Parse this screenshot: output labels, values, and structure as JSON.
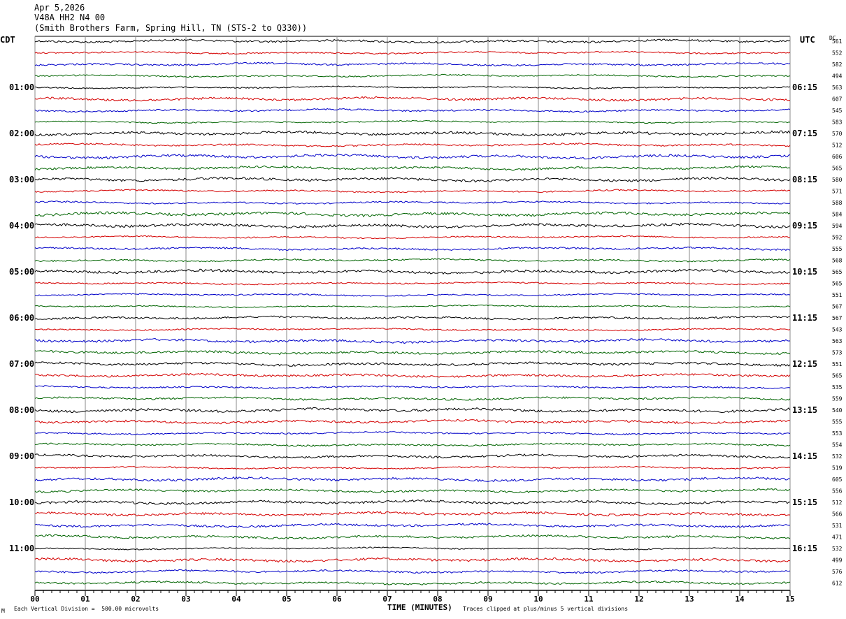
{
  "header": {
    "date": "Apr 5,2026",
    "station": "V48A HH2 N4 00",
    "location": "(Smith Brothers Farm, Spring Hill, TN (STS-2 to Q330))"
  },
  "left_zone": "CDT",
  "right_zone": "UTC",
  "dc_label": "DC",
  "footer": {
    "scale": "Each Vertical Division =  500.00 microvolts",
    "clip": "Traces clipped at plus/minus 5 vertical divisions",
    "logo": "M"
  },
  "chart_data": {
    "type": "line",
    "xlabel": "TIME (MINUTES)",
    "xlim": [
      0,
      15
    ],
    "x_ticks": [
      "00",
      "01",
      "02",
      "03",
      "04",
      "05",
      "06",
      "07",
      "08",
      "09",
      "10",
      "11",
      "12",
      "13",
      "14",
      "15"
    ],
    "colors": [
      "#000000",
      "#d40000",
      "#0000c8",
      "#006400"
    ],
    "left_hour_labels": [
      "01:00",
      "02:00",
      "03:00",
      "04:00",
      "05:00",
      "06:00",
      "07:00",
      "08:00",
      "09:00",
      "10:00",
      "11:00"
    ],
    "right_hour_labels": [
      "06:15",
      "07:15",
      "08:15",
      "09:15",
      "10:15",
      "11:15",
      "12:15",
      "13:15",
      "14:15",
      "15:15",
      "16:15"
    ],
    "trace_count": 48,
    "dc_values": [
      "561",
      "552",
      "582",
      "494",
      "563",
      "607",
      "545",
      "583",
      "570",
      "512",
      "606",
      "565",
      "580",
      "571",
      "588",
      "584",
      "594",
      "592",
      "555",
      "568",
      "565",
      "565",
      "551",
      "567",
      "567",
      "543",
      "563",
      "573",
      "551",
      "565",
      "535",
      "559",
      "540",
      "555",
      "553",
      "554",
      "532",
      "519",
      "605",
      "556",
      "512",
      "566",
      "531",
      "471",
      "532",
      "499",
      "576",
      "612"
    ]
  }
}
